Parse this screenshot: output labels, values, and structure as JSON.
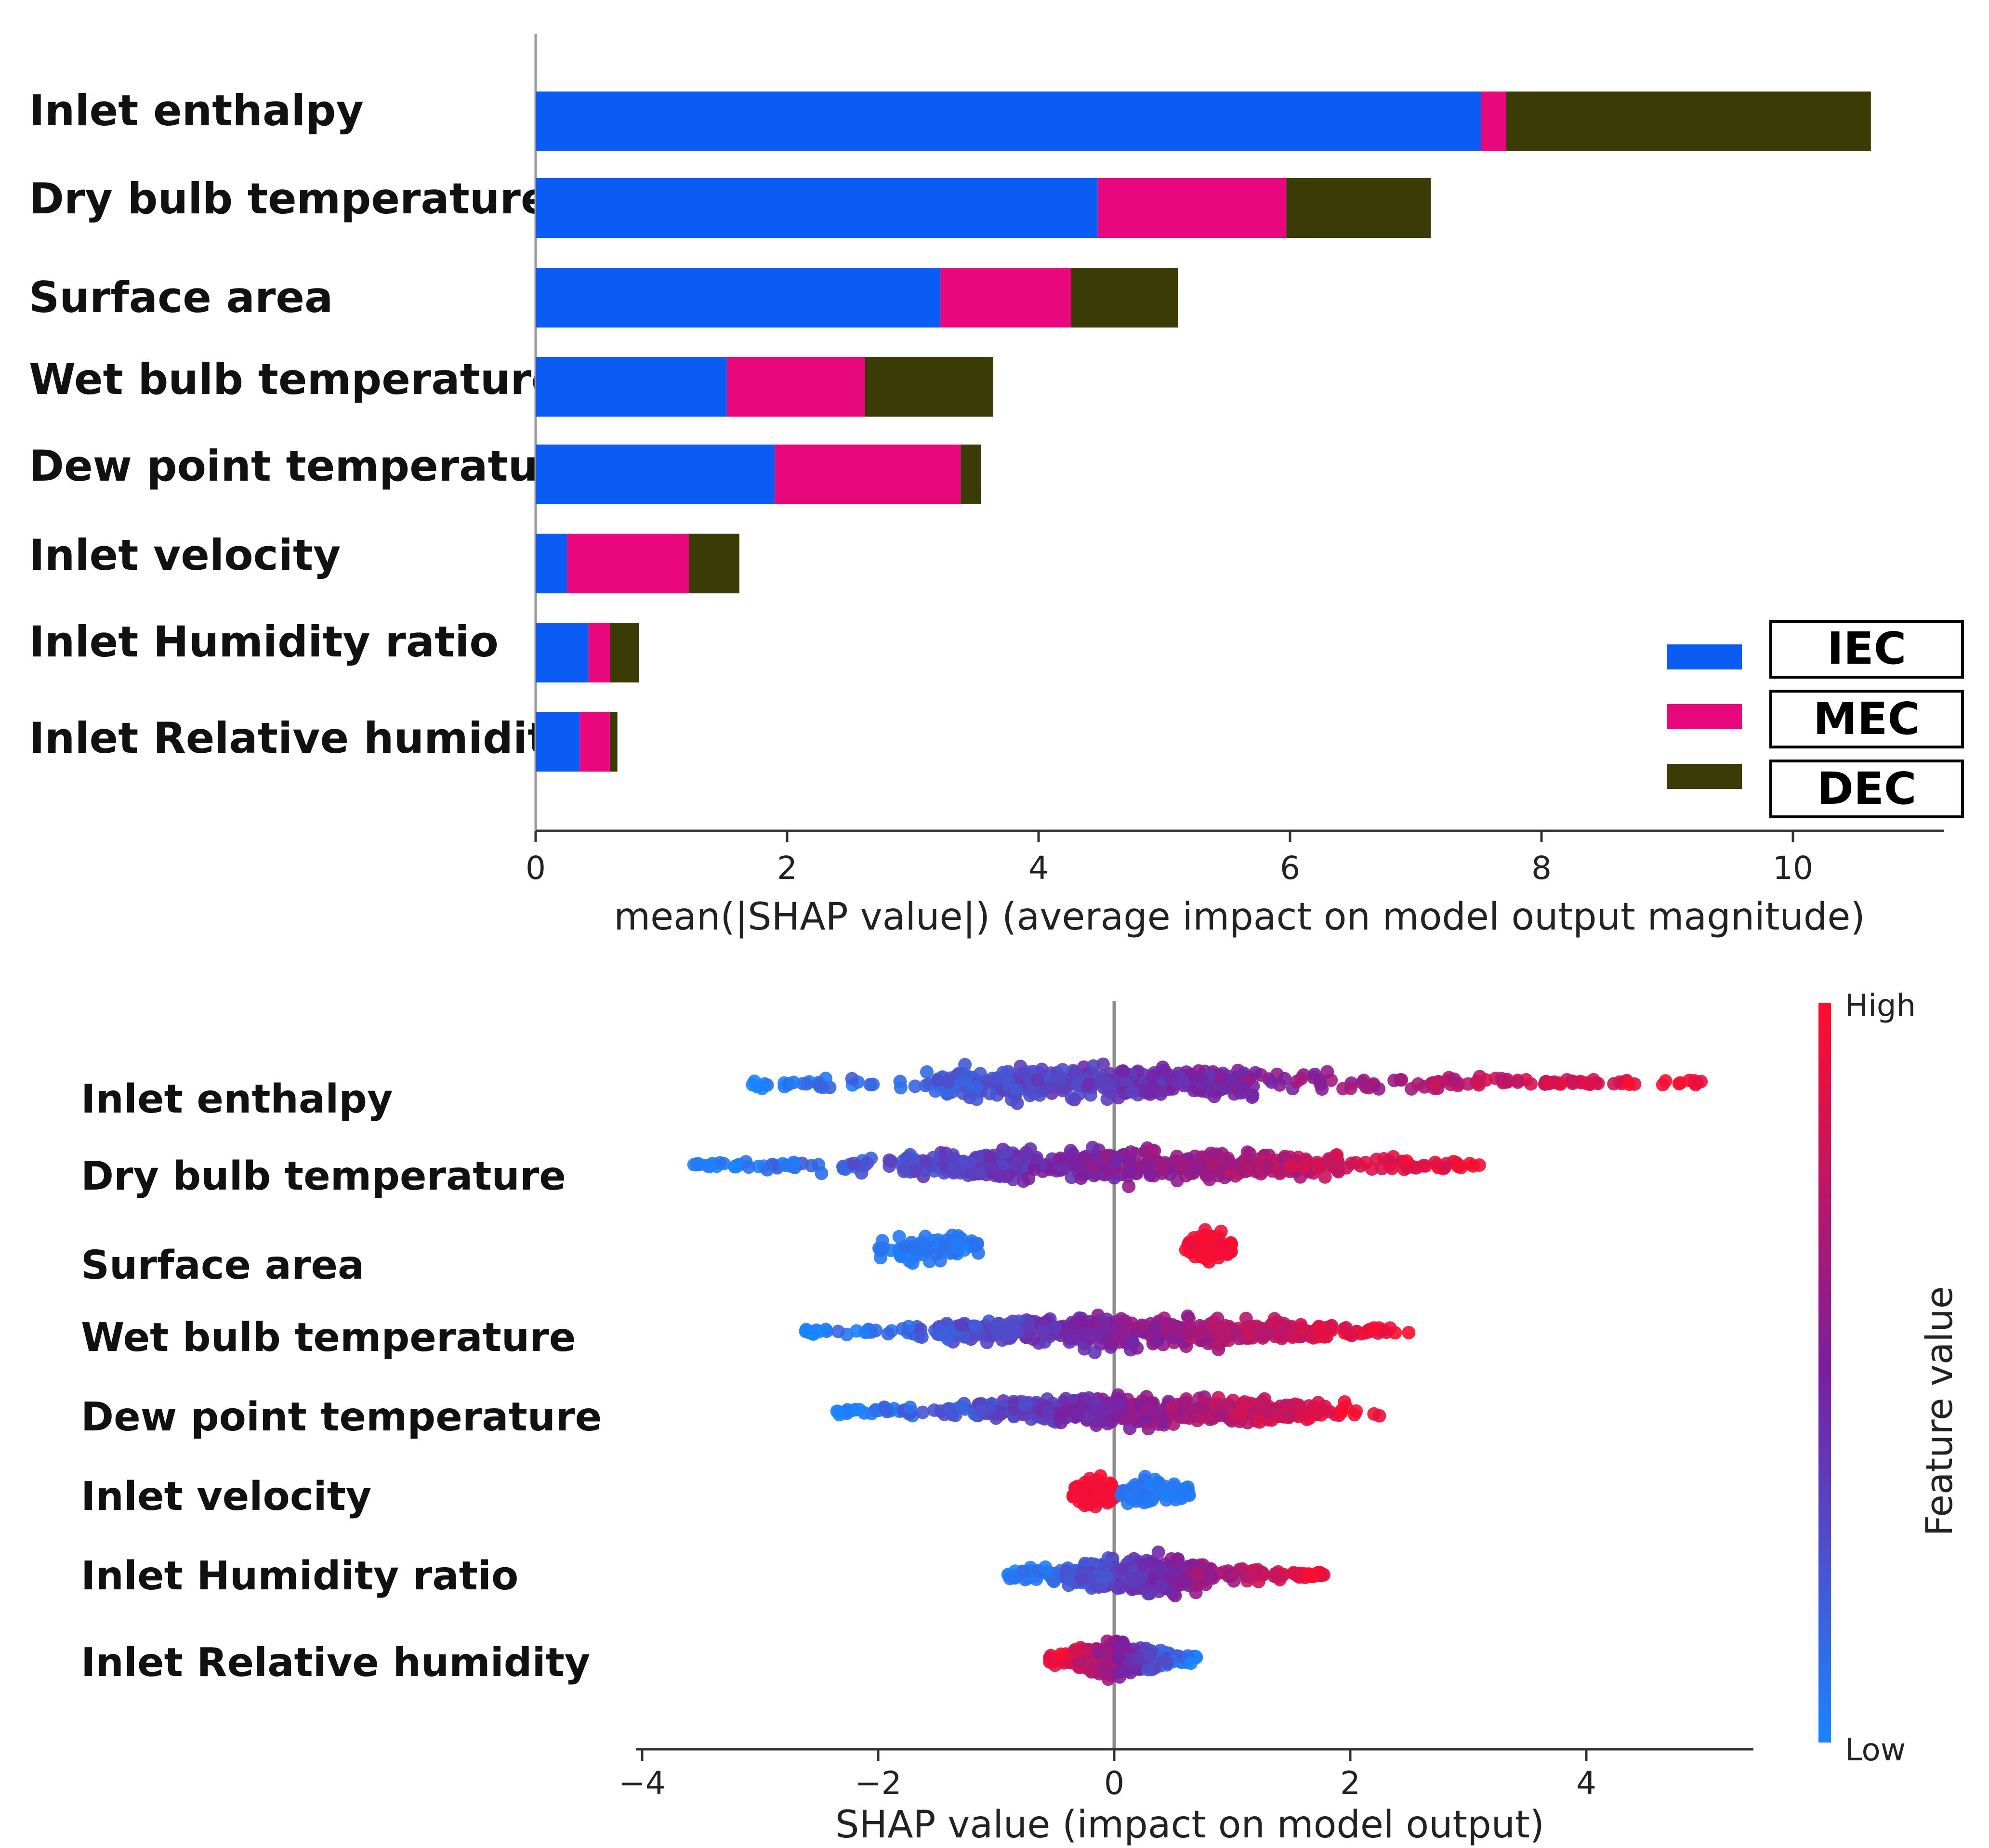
{
  "chart_data": [
    {
      "type": "bar",
      "stacked": true,
      "orientation": "horizontal",
      "categories": [
        "Inlet enthalpy",
        "Dry bulb temperature",
        "Surface area",
        "Wet bulb temperature",
        "Dew point temperature",
        "Inlet velocity",
        "Inlet Humidity ratio",
        "Inlet Relative humidity"
      ],
      "series": [
        {
          "name": "IEC",
          "color": "#0a5cf5",
          "values": [
            7.52,
            4.47,
            3.22,
            1.52,
            1.9,
            0.25,
            0.42,
            0.35
          ]
        },
        {
          "name": "MEC",
          "color": "#e8077c",
          "values": [
            0.2,
            1.5,
            1.04,
            1.1,
            1.48,
            0.97,
            0.17,
            0.24
          ]
        },
        {
          "name": "DEC",
          "color": "#3b3c05",
          "values": [
            2.9,
            1.15,
            0.85,
            1.02,
            0.16,
            0.4,
            0.23,
            0.06
          ]
        }
      ],
      "xlim": [
        0,
        11.1
      ],
      "xticks": [
        "0",
        "2",
        "4",
        "6",
        "8",
        "10"
      ],
      "xlabel": "mean(|SHAP value|) (average impact on model output magnitude)",
      "legend": [
        "IEC",
        "MEC",
        "DEC"
      ],
      "legend_position": "bottom-right"
    },
    {
      "type": "scatter",
      "subtype": "beeswarm",
      "categories": [
        "Inlet enthalpy",
        "Dry bulb temperature",
        "Surface area",
        "Wet bulb temperature",
        "Dew point temperature",
        "Inlet velocity",
        "Inlet Humidity ratio",
        "Inlet Relative humidity"
      ],
      "distributions": [
        {
          "feature": "Inlet enthalpy",
          "min": -3.1,
          "max": 5.0,
          "lowside": "left",
          "dense": [
            -1.5,
            1.2
          ]
        },
        {
          "feature": "Dry bulb temperature",
          "min": -3.6,
          "max": 3.15,
          "lowside": "left",
          "dense": [
            -1.8,
            1.9
          ]
        },
        {
          "feature": "Surface area",
          "clusters": [
            {
              "min": -2.0,
              "max": -1.15,
              "color": "low"
            },
            {
              "min": 0.6,
              "max": 1.0,
              "color": "high"
            }
          ]
        },
        {
          "feature": "Wet bulb temperature",
          "min": -2.65,
          "max": 2.5,
          "lowside": "left",
          "dense": [
            -1.5,
            1.8
          ]
        },
        {
          "feature": "Dew point temperature",
          "min": -2.4,
          "max": 2.25,
          "lowside": "left",
          "dense": [
            -1.2,
            1.6
          ]
        },
        {
          "feature": "Inlet velocity",
          "clusters": [
            {
              "min": -0.35,
              "max": 0.0,
              "color": "high"
            },
            {
              "min": 0.05,
              "max": 0.65,
              "color": "low"
            }
          ]
        },
        {
          "feature": "Inlet Humidity ratio",
          "min": -0.9,
          "max": 1.8,
          "lowside": "left",
          "dense": [
            -0.3,
            0.8
          ]
        },
        {
          "feature": "Inlet Relative humidity",
          "min": -0.55,
          "max": 0.7,
          "lowside": "right",
          "dense": [
            -0.35,
            0.35
          ]
        }
      ],
      "xlim": [
        -4.0,
        5.4
      ],
      "xticks": [
        "−4",
        "−2",
        "0",
        "2",
        "4"
      ],
      "xlabel": "SHAP value (impact on model output)",
      "colorbar": {
        "label": "Feature value",
        "high_label": "High",
        "low_label": "Low",
        "high_color": "#ff0d2c",
        "mid_color": "#7a1fa0",
        "low_color": "#1a84ff"
      }
    }
  ]
}
